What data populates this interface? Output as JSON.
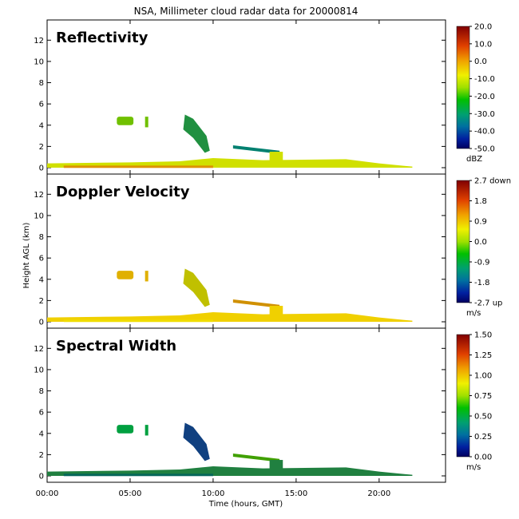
{
  "title": "NSA, Millimeter cloud radar data for 20000814",
  "ylabel": "Height AGL (km)",
  "xlabel": "Time (hours, GMT)",
  "x_ticks": [
    "00:00",
    "05:00",
    "10:00",
    "15:00",
    "20:00"
  ],
  "y_ticks": [
    "0",
    "2",
    "4",
    "6",
    "8",
    "10",
    "12"
  ],
  "chart_data": [
    {
      "type": "heatmap",
      "panel_title": "Reflectivity",
      "colorbar": {
        "unit": "dBZ",
        "ticks": [
          "20.0",
          "10.0",
          "0.0",
          "-10.0",
          "-20.0",
          "-30.0",
          "-40.0",
          "-50.0"
        ]
      },
      "x_range_hours": [
        0,
        24
      ],
      "y_range_km": [
        0,
        13
      ]
    },
    {
      "type": "heatmap",
      "panel_title": "Doppler Velocity",
      "colorbar": {
        "unit": "m/s",
        "ticks": [
          "2.7 down",
          "1.8",
          "0.9",
          "0.0",
          "-0.9",
          "-1.8",
          "-2.7 up"
        ]
      },
      "x_range_hours": [
        0,
        24
      ],
      "y_range_km": [
        0,
        13
      ]
    },
    {
      "type": "heatmap",
      "panel_title": "Spectral Width",
      "colorbar": {
        "unit": "m/s",
        "ticks": [
          "1.50",
          "1.25",
          "1.00",
          "0.75",
          "0.50",
          "0.25",
          "0.00"
        ]
      },
      "x_range_hours": [
        0,
        24
      ],
      "y_range_km": [
        0,
        13
      ]
    }
  ]
}
